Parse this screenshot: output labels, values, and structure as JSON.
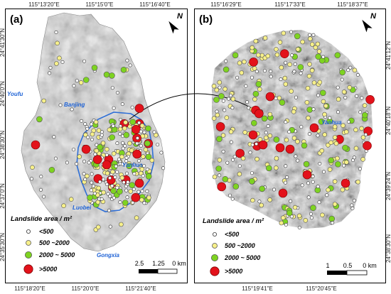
{
  "panels": [
    {
      "label": "(a)",
      "top_ticks": [
        "115°13'20\"E",
        "115°15'0\"E",
        "115°16'40\"E"
      ],
      "bottom_ticks": [
        "115°18'20\"E",
        "115°20'0\"E",
        "115°21'40\"E"
      ],
      "left_ticks": [
        "24°41'30\"N",
        "24°40'0\"N",
        "24°38'30\"N",
        "24°37'0\"N",
        "24°35'30\"N"
      ],
      "places": [
        "Youfu",
        "Banjing",
        "Yanhua",
        "Luobei",
        "Gongxia"
      ],
      "north_label": "N",
      "legend_title": "Landslide area / m²",
      "legend_items": [
        "<500",
        "500 ~2000",
        "2000 ~ 5000",
        ">5000"
      ],
      "scale_labels": [
        "2.5",
        "1.25",
        "0 km"
      ]
    },
    {
      "label": "(b)",
      "top_ticks": [
        "115°16'29\"E",
        "115°17'33\"E",
        "115°18'37\"E"
      ],
      "bottom_ticks": [
        "115°19'41\"E",
        "115°20'45\"E"
      ],
      "right_ticks": [
        "24°41'12\"N",
        "24°40'18\"N",
        "24°39'24\"N",
        "24°38'30\"N"
      ],
      "places": [
        "Yanhua"
      ],
      "north_label": "N",
      "legend_title": "Landslide area / m²",
      "legend_items": [
        "<500",
        "500 ~2000",
        "2000 ~ 5000",
        ">5000"
      ],
      "scale_labels": [
        "1",
        "0.5",
        "0 km"
      ]
    }
  ],
  "legend_colors": [
    "#ffffff",
    "#f7f08a",
    "#7ed321",
    "#e3121b"
  ],
  "boundary_color": "#2f6fd6"
}
